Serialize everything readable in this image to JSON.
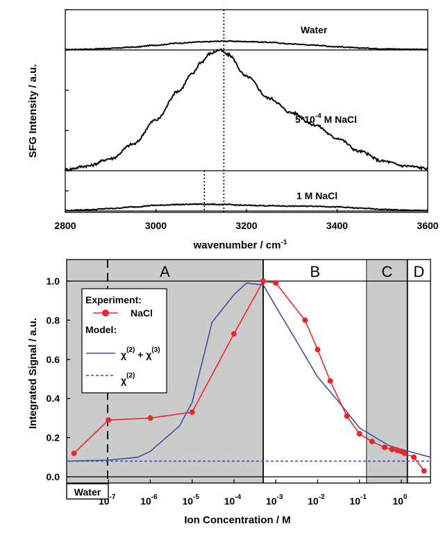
{
  "chart_data": [
    {
      "type": "line",
      "xlabel": "wavenumber / cm",
      "xlabel_superscript": "-1",
      "ylabel": "SFG Intensity / a.u.",
      "xlim": [
        2800,
        3600
      ],
      "x_ticks": [
        "2800",
        "3000",
        "3200",
        "3400",
        "3600"
      ],
      "grid": false,
      "series": [
        {
          "label_parts": [
            "Water"
          ],
          "x": [
            2800,
            2850,
            2900,
            2950,
            3000,
            3050,
            3100,
            3150,
            3200,
            3250,
            3300,
            3350,
            3400,
            3450,
            3500,
            3550,
            3600
          ],
          "y": [
            0.01,
            0.02,
            0.04,
            0.07,
            0.12,
            0.17,
            0.2,
            0.22,
            0.21,
            0.19,
            0.15,
            0.12,
            0.08,
            0.05,
            0.03,
            0.02,
            0.01
          ]
        },
        {
          "label_parts": [
            "5*10",
            "-4",
            " M NaCl"
          ],
          "x": [
            2800,
            2850,
            2900,
            2950,
            3000,
            3050,
            3080,
            3100,
            3120,
            3140,
            3160,
            3200,
            3250,
            3300,
            3350,
            3400,
            3450,
            3500,
            3550,
            3600
          ],
          "y": [
            0.01,
            0.04,
            0.1,
            0.22,
            0.42,
            0.66,
            0.8,
            0.9,
            0.97,
            1.0,
            0.96,
            0.78,
            0.6,
            0.48,
            0.38,
            0.27,
            0.16,
            0.08,
            0.04,
            0.02
          ]
        },
        {
          "label_parts": [
            "1 M NaCl"
          ],
          "x": [
            2800,
            2850,
            2900,
            2950,
            3000,
            3050,
            3100,
            3150,
            3200,
            3250,
            3300,
            3350,
            3400,
            3450,
            3500,
            3550,
            3600
          ],
          "y": [
            0.01,
            0.03,
            0.06,
            0.1,
            0.14,
            0.16,
            0.17,
            0.16,
            0.14,
            0.13,
            0.12,
            0.12,
            0.1,
            0.07,
            0.04,
            0.02,
            0.01
          ]
        }
      ],
      "vertical_lines": [
        3150,
        3107
      ]
    },
    {
      "type": "line",
      "xscale": "log",
      "xlabel": "Ion Concentration / M",
      "ylabel": "Integrated Signal / a.u.",
      "ylim": [
        -0.03,
        1.1
      ],
      "y_ticks": [
        "0.0",
        "0.2",
        "0.4",
        "0.6",
        "0.8",
        "1.0"
      ],
      "x_tick_labels": [
        {
          "value": 1e-07,
          "base": "10",
          "exp": "-7"
        },
        {
          "value": 1e-06,
          "base": "10",
          "exp": "-6"
        },
        {
          "value": 1e-05,
          "base": "10",
          "exp": "-5"
        },
        {
          "value": 0.0001,
          "base": "10",
          "exp": "-4"
        },
        {
          "value": 0.001,
          "base": "10",
          "exp": "-3"
        },
        {
          "value": 0.01,
          "base": "10",
          "exp": "-2"
        },
        {
          "value": 0.1,
          "base": "10",
          "exp": "-1"
        },
        {
          "value": 1,
          "base": "10",
          "exp": "0"
        }
      ],
      "water_label": "Water",
      "regions": [
        {
          "label": "A",
          "from": 1e-08,
          "to": 0.0005,
          "shaded": true
        },
        {
          "label": "B",
          "from": 0.0005,
          "to": 0.15,
          "shaded": false
        },
        {
          "label": "C",
          "from": 0.15,
          "to": 1.4,
          "shaded": true
        },
        {
          "label": "D",
          "from": 1.4,
          "to": 5,
          "shaded": false
        }
      ],
      "legend": {
        "placement": "upper-left",
        "experiment_heading": "Experiment:",
        "experiment_label": "NaCl",
        "model_heading": "Model:",
        "model_full_parts": [
          "χ",
          "(2)",
          " + χ",
          "(3)"
        ],
        "model_chi2_parts": [
          "χ",
          "(2)"
        ]
      },
      "series": [
        {
          "name": "NaCl",
          "color": "#e8262b",
          "x": [
            1.5e-08,
            1e-07,
            1e-06,
            1e-05,
            0.0001,
            0.0005,
            0.001,
            0.005,
            0.01,
            0.02,
            0.05,
            0.1,
            0.2,
            0.4,
            0.6,
            0.8,
            1,
            1.2,
            2,
            3.5
          ],
          "y": [
            0.12,
            0.29,
            0.3,
            0.33,
            0.73,
            1.0,
            0.99,
            0.8,
            0.65,
            0.49,
            0.31,
            0.22,
            0.18,
            0.15,
            0.14,
            0.135,
            0.13,
            0.12,
            0.1,
            0.03
          ]
        },
        {
          "name": "chi2+chi3",
          "color": "#3c4fa5",
          "x": [
            1e-08,
            1e-07,
            5e-07,
            1e-06,
            5e-06,
            1e-05,
            3e-05,
            0.0001,
            0.0002,
            0.0005,
            0.001,
            0.003,
            0.01,
            0.03,
            0.1,
            0.5,
            1,
            5
          ],
          "y": [
            0.08,
            0.085,
            0.1,
            0.13,
            0.26,
            0.38,
            0.79,
            0.93,
            0.99,
            0.98,
            0.87,
            0.7,
            0.51,
            0.39,
            0.25,
            0.16,
            0.14,
            0.1
          ]
        },
        {
          "name": "chi2",
          "color": "#3c4fa5",
          "style": "dashed",
          "x": [
            1e-08,
            5
          ],
          "y": [
            0.08,
            0.08
          ]
        }
      ]
    }
  ]
}
